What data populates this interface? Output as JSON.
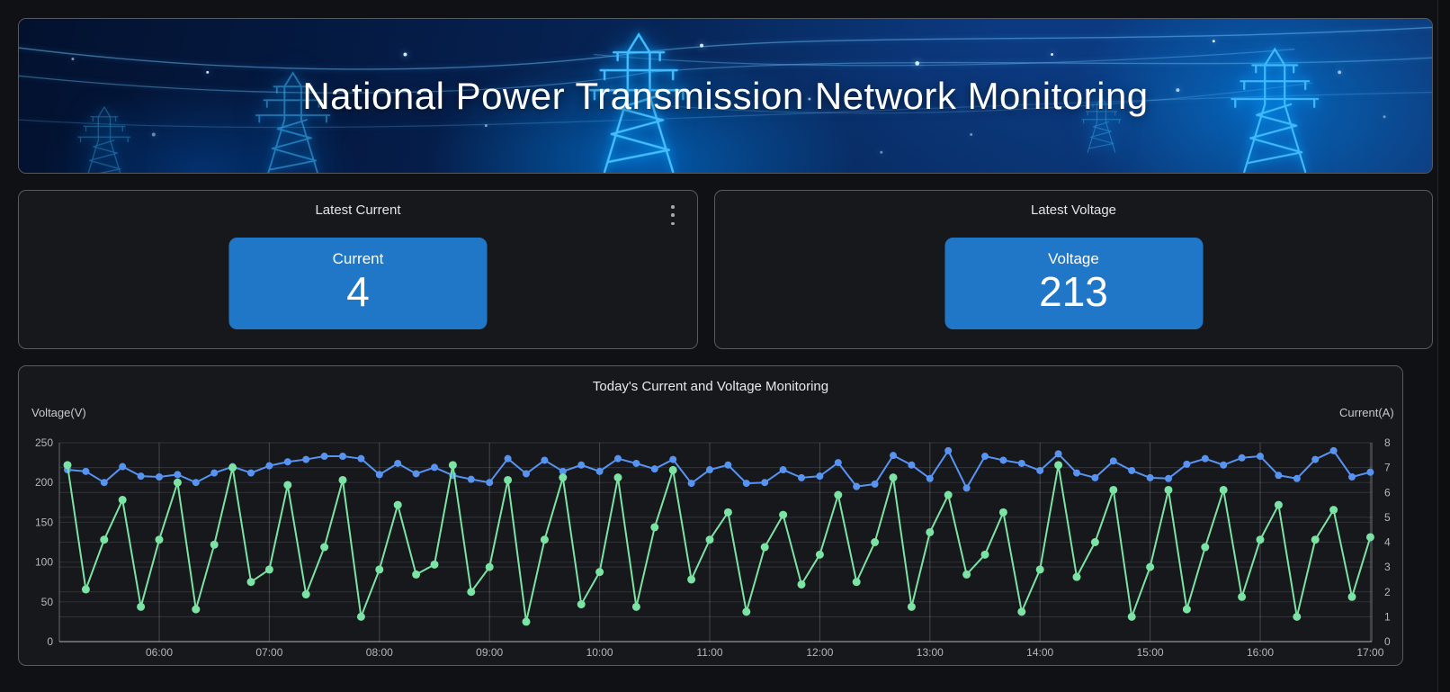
{
  "header": {
    "title": "National Power Transmission Network Monitoring"
  },
  "stat_panels": [
    {
      "title": "Latest Current",
      "card_label": "Current",
      "value": "4"
    },
    {
      "title": "Latest Voltage",
      "card_label": "Voltage",
      "value": "213"
    }
  ],
  "colors": {
    "stat_card_blue": "#2077C8",
    "voltage_series": "#5794F2",
    "current_series": "#7BE3A3",
    "panel_background": "#17181c",
    "page_background": "#101114"
  },
  "chart_data": {
    "type": "line",
    "title": "Today's Current and Voltage Monitoring",
    "grid": true,
    "legend_position": "none",
    "y_left": {
      "label": "Voltage(V)",
      "min": 0,
      "max": 250,
      "ticks": [
        0,
        50,
        100,
        150,
        200,
        250
      ]
    },
    "y_right": {
      "label": "Current(A)",
      "min": 0,
      "max": 8,
      "ticks": [
        0,
        1,
        2,
        3,
        4,
        5,
        6,
        7,
        8
      ]
    },
    "x_tick_labels": [
      "06:00",
      "07:00",
      "08:00",
      "09:00",
      "10:00",
      "11:00",
      "12:00",
      "13:00",
      "14:00",
      "15:00",
      "16:00",
      "17:00"
    ],
    "x": [
      "05:10",
      "05:20",
      "05:30",
      "05:40",
      "05:50",
      "06:00",
      "06:10",
      "06:20",
      "06:30",
      "06:40",
      "06:50",
      "07:00",
      "07:10",
      "07:20",
      "07:30",
      "07:40",
      "07:50",
      "08:00",
      "08:10",
      "08:20",
      "08:30",
      "08:40",
      "08:50",
      "09:00",
      "09:10",
      "09:20",
      "09:30",
      "09:40",
      "09:50",
      "10:00",
      "10:10",
      "10:20",
      "10:30",
      "10:40",
      "10:50",
      "11:00",
      "11:10",
      "11:20",
      "11:30",
      "11:40",
      "11:50",
      "12:00",
      "12:10",
      "12:20",
      "12:30",
      "12:40",
      "12:50",
      "13:00",
      "13:10",
      "13:20",
      "13:30",
      "13:40",
      "13:50",
      "14:00",
      "14:10",
      "14:20",
      "14:30",
      "14:40",
      "14:50",
      "15:00",
      "15:10",
      "15:20",
      "15:30",
      "15:40",
      "15:50",
      "16:00",
      "16:10",
      "16:20",
      "16:30",
      "16:40",
      "16:50",
      "17:00"
    ],
    "series": [
      {
        "name": "Voltage",
        "axis": "left",
        "color": "#5794F2",
        "values": [
          216,
          214,
          200,
          220,
          208,
          207,
          210,
          200,
          212,
          220,
          212,
          221,
          226,
          229,
          233,
          233,
          230,
          210,
          224,
          211,
          219,
          209,
          204,
          200,
          230,
          211,
          228,
          214,
          222,
          214,
          230,
          224,
          217,
          229,
          199,
          216,
          222,
          199,
          200,
          216,
          206,
          208,
          225,
          195,
          198,
          234,
          222,
          205,
          240,
          193,
          233,
          228,
          224,
          215,
          236,
          212,
          206,
          227,
          215,
          206,
          205,
          223,
          230,
          222,
          231,
          233,
          209,
          205,
          229,
          240,
          207,
          213
        ]
      },
      {
        "name": "Current",
        "axis": "right",
        "color": "#7BE3A3",
        "values": [
          7.1,
          2.1,
          4.1,
          5.7,
          1.4,
          4.1,
          6.4,
          1.3,
          3.9,
          7.0,
          2.4,
          2.9,
          6.3,
          1.9,
          3.8,
          6.5,
          1.0,
          2.9,
          5.5,
          2.7,
          3.1,
          7.1,
          2.0,
          3.0,
          6.5,
          0.8,
          4.1,
          6.6,
          1.5,
          2.8,
          6.6,
          1.4,
          4.6,
          6.9,
          2.5,
          4.1,
          5.2,
          1.2,
          3.8,
          5.1,
          2.3,
          3.5,
          5.9,
          2.4,
          4.0,
          6.6,
          1.4,
          4.4,
          5.9,
          2.7,
          3.5,
          5.2,
          1.2,
          2.9,
          7.1,
          2.6,
          4.0,
          6.1,
          1.0,
          3.0,
          6.1,
          1.3,
          3.8,
          6.1,
          1.8,
          4.1,
          5.5,
          1.0,
          4.1,
          5.3,
          1.8,
          4.2
        ]
      }
    ]
  }
}
